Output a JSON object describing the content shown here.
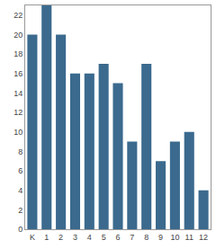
{
  "chart_data": {
    "type": "bar",
    "categories": [
      "K",
      "1",
      "2",
      "3",
      "4",
      "5",
      "6",
      "7",
      "8",
      "9",
      "10",
      "11",
      "12"
    ],
    "values": [
      20,
      23,
      20,
      16,
      16,
      17,
      15,
      9,
      17,
      7,
      9,
      10,
      4
    ],
    "color": "#3b6a8e",
    "ylim": [
      0,
      23
    ],
    "yticks": [
      0,
      2,
      4,
      6,
      8,
      10,
      12,
      14,
      16,
      18,
      20,
      22
    ],
    "grid": false
  }
}
